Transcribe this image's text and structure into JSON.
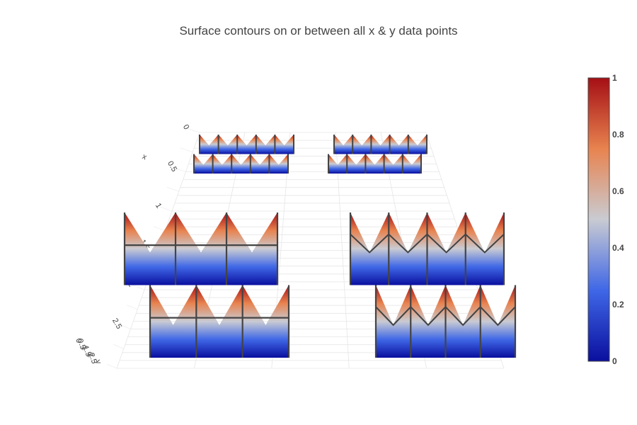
{
  "chart_data": {
    "type": "surface",
    "title": "Surface contours on or between all x & y data points",
    "x_axis": {
      "label": "x",
      "ticks": [
        "0",
        "0.5",
        "1",
        "1.5",
        "2",
        "2.5"
      ],
      "range": [
        0,
        3
      ]
    },
    "y_axis": {
      "label": "y",
      "ticks": [
        "0",
        "0.5",
        "1",
        "1.5",
        "2",
        "2.5"
      ]
    },
    "colorscale": [
      "#0a0f9e",
      "#3f67e6",
      "#c9cbd2",
      "#e8834f",
      "#a50f15"
    ],
    "colorbar": {
      "ticks": [
        "0",
        "0.2",
        "0.4",
        "0.6",
        "0.8",
        "1"
      ],
      "range": [
        0,
        1
      ]
    },
    "z_range": [
      0,
      1
    ],
    "contour_color": "#444444",
    "surfaces": [
      {
        "panel": "back-left",
        "contours": "none"
      },
      {
        "panel": "back-right",
        "contours": "none"
      },
      {
        "panel": "front-left",
        "contours": "on x & y data points"
      },
      {
        "panel": "front-right",
        "contours": "between x & y data points"
      }
    ]
  }
}
